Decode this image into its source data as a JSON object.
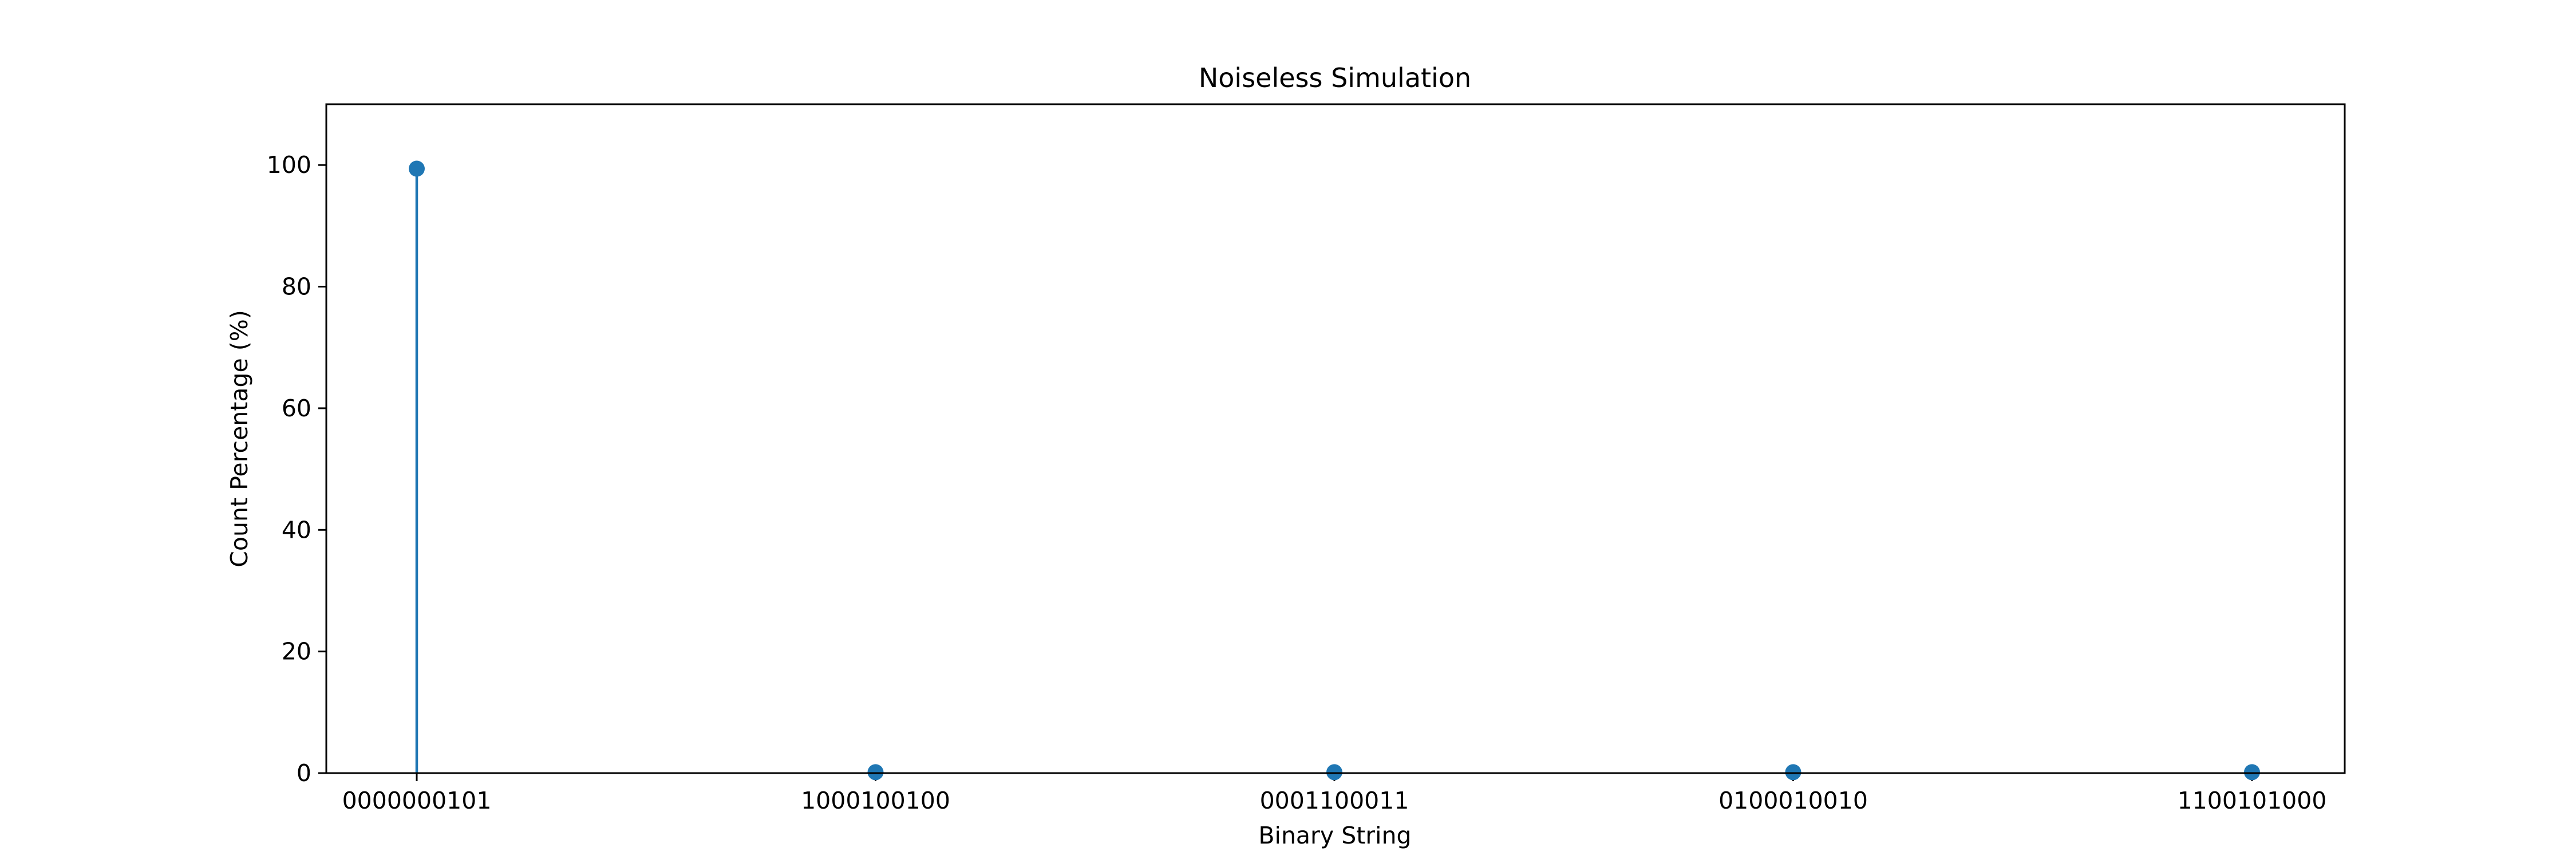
{
  "chart_data": {
    "type": "stem",
    "title": "Noiseless Simulation",
    "xlabel": "Binary String",
    "ylabel": "Count Percentage (%)",
    "categories": [
      "0000000101",
      "1000100100",
      "0001100011",
      "0100010010",
      "1100101000"
    ],
    "values": [
      99.4,
      0.15,
      0.15,
      0.15,
      0.15
    ],
    "ylim": [
      0,
      110
    ],
    "yticks": [
      0,
      20,
      40,
      60,
      80,
      100
    ],
    "grid": false,
    "legend": "none",
    "colors": {
      "series": "#1f77b4",
      "axes": "#000000",
      "background": "#ffffff"
    }
  }
}
